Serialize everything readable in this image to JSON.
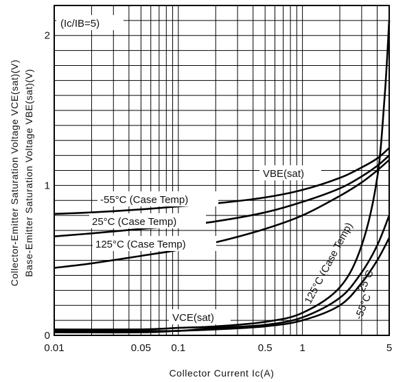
{
  "chart_data": {
    "type": "line",
    "x_scale": "log",
    "xlim": [
      0.01,
      5
    ],
    "ylim": [
      0,
      2.2
    ],
    "grid": true,
    "xlabel": "Collector Current Ic(A)",
    "ylabel_lines": [
      "Collector-Emitter Saturation Voltage VCE(sat)(V)",
      "Base-Emitter Saturation Voltage VBE(sat)(V)"
    ],
    "x_ticks": [
      {
        "value": 0.01,
        "label": "0.01"
      },
      {
        "value": 0.05,
        "label": "0.05"
      },
      {
        "value": 0.1,
        "label": "0.1"
      },
      {
        "value": 0.5,
        "label": "0.5"
      },
      {
        "value": 1,
        "label": "1"
      },
      {
        "value": 5,
        "label": "5"
      }
    ],
    "y_ticks": [
      {
        "value": 0,
        "label": "0"
      },
      {
        "value": 1,
        "label": "1"
      },
      {
        "value": 2,
        "label": "2"
      }
    ],
    "condition": "(Ic/IB=5)",
    "group_labels": {
      "vbe": "VBE(sat)",
      "vce": "VCE(sat)"
    },
    "series": [
      {
        "name": "-55°C (Case Temp)",
        "group": "VBE(sat)",
        "x": [
          0.01,
          0.02,
          0.05,
          0.1,
          0.2,
          0.5,
          1,
          2,
          3,
          4,
          5
        ],
        "y": [
          0.81,
          0.82,
          0.84,
          0.86,
          0.88,
          0.92,
          0.97,
          1.05,
          1.12,
          1.18,
          1.25
        ]
      },
      {
        "name": "25°C (Case Temp)",
        "group": "VBE(sat)",
        "x": [
          0.01,
          0.02,
          0.05,
          0.1,
          0.2,
          0.5,
          1,
          2,
          3,
          4,
          5
        ],
        "y": [
          0.66,
          0.68,
          0.71,
          0.73,
          0.76,
          0.82,
          0.89,
          0.98,
          1.06,
          1.13,
          1.2
        ]
      },
      {
        "name": "125°C (Case Temp)",
        "group": "VBE(sat)",
        "x": [
          0.01,
          0.02,
          0.05,
          0.1,
          0.2,
          0.5,
          1,
          2,
          3,
          4,
          5
        ],
        "y": [
          0.45,
          0.48,
          0.53,
          0.57,
          0.62,
          0.71,
          0.8,
          0.93,
          1.02,
          1.1,
          1.17
        ]
      },
      {
        "name": "-55°C",
        "group": "VCE(sat)",
        "x": [
          0.01,
          0.05,
          0.1,
          0.2,
          0.5,
          1,
          2,
          3,
          4,
          5
        ],
        "y": [
          0.02,
          0.02,
          0.03,
          0.04,
          0.06,
          0.1,
          0.2,
          0.35,
          0.5,
          0.65
        ]
      },
      {
        "name": "25°C",
        "group": "VCE(sat)",
        "x": [
          0.01,
          0.05,
          0.1,
          0.2,
          0.5,
          1,
          2,
          3,
          4,
          5
        ],
        "y": [
          0.03,
          0.03,
          0.03,
          0.05,
          0.07,
          0.12,
          0.25,
          0.42,
          0.6,
          0.8
        ]
      },
      {
        "name": "125°C (Case Temp)",
        "group": "VCE(sat)",
        "x": [
          0.01,
          0.05,
          0.1,
          0.2,
          0.5,
          1,
          2,
          3,
          4,
          4.6,
          5
        ],
        "y": [
          0.04,
          0.04,
          0.05,
          0.06,
          0.09,
          0.15,
          0.32,
          0.6,
          1.05,
          1.6,
          2.1
        ]
      }
    ]
  }
}
